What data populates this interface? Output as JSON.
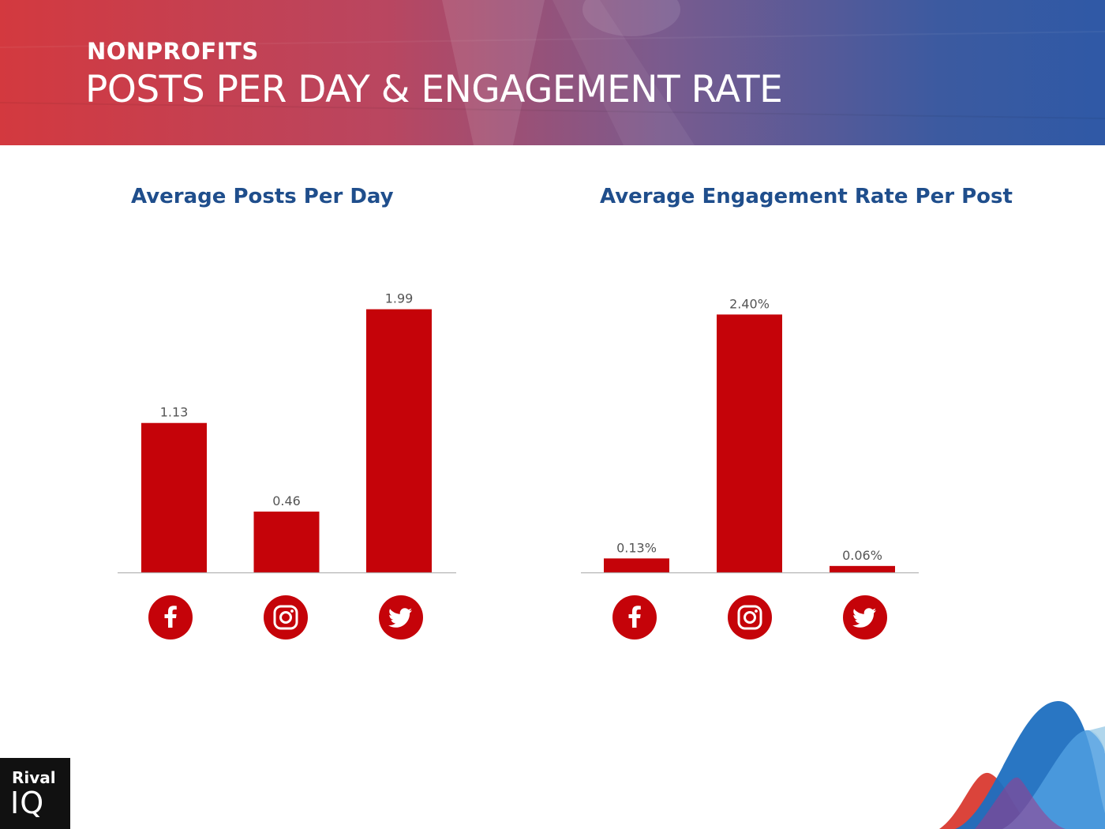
{
  "header": {
    "eyebrow": "NONPROFITS",
    "title": "POSTS PER DAY & ENGAGEMENT RATE"
  },
  "colors": {
    "bar": "#c50309",
    "panel_title": "#1f4e8c",
    "icon_bg": "#c50309"
  },
  "logo": {
    "line1": "Rival",
    "line2": "IQ"
  },
  "chart_data": [
    {
      "type": "bar",
      "title": "Average Posts Per Day",
      "categories": [
        "Facebook",
        "Instagram",
        "Twitter"
      ],
      "category_icons": [
        "facebook-icon",
        "instagram-icon",
        "twitter-icon"
      ],
      "values": [
        1.13,
        0.46,
        1.99
      ],
      "labels": [
        "1.13",
        "0.46",
        "1.99"
      ],
      "xlabel": "",
      "ylabel": "",
      "ylim": [
        0,
        2.0
      ]
    },
    {
      "type": "bar",
      "title": "Average Engagement Rate Per Post",
      "categories": [
        "Facebook",
        "Instagram",
        "Twitter"
      ],
      "category_icons": [
        "facebook-icon",
        "instagram-icon",
        "twitter-icon"
      ],
      "values": [
        0.13,
        2.4,
        0.06
      ],
      "labels": [
        "0.13%",
        "2.40%",
        "0.06%"
      ],
      "xlabel": "",
      "ylabel": "",
      "ylim": [
        0,
        2.41
      ]
    }
  ]
}
